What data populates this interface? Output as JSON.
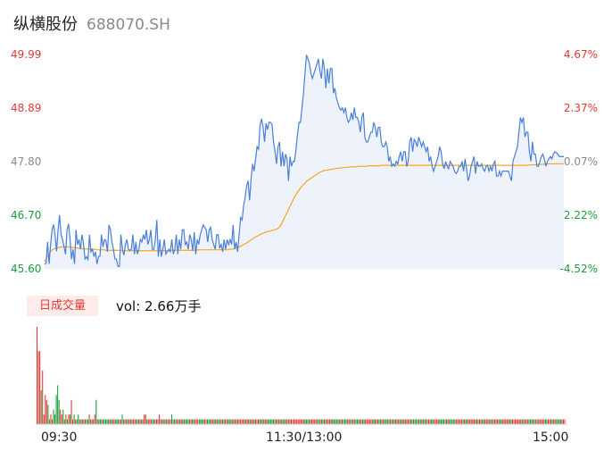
{
  "header": {
    "name": "纵横股份",
    "code": "688070.SH"
  },
  "volume": {
    "tag": "日成交量",
    "text": "vol: 2.66万手"
  },
  "chart_data": [
    {
      "type": "line",
      "y_left_ticks": [
        "49.99",
        "48.89",
        "47.80",
        "46.70",
        "45.60"
      ],
      "y_right_ticks": [
        "4.67%",
        "2.37%",
        "0.07%",
        "-2.22%",
        "-4.52%"
      ],
      "y_left_colors": [
        "#e53935",
        "#e53935",
        "#8a8a8a",
        "#1a9e3a",
        "#1a9e3a"
      ],
      "ylim": [
        45.6,
        49.99
      ],
      "x_ticks": [
        "09:30",
        "11:30/13:00",
        "15:00"
      ],
      "series": [
        {
          "values": [
            45.69,
            45.72,
            46.15,
            45.7,
            46.1,
            46.4,
            46.51,
            46.28,
            45.96,
            46.4,
            46.7,
            46.3,
            46.2,
            46.05,
            45.9,
            46.4,
            46.52,
            46.22,
            45.8,
            46.0,
            45.7,
            46.4,
            46.1,
            46.2,
            46.0,
            46.3,
            46.12,
            45.8,
            45.85,
            45.79,
            46.3,
            45.95,
            46.0,
            45.85,
            45.95,
            45.7,
            45.85,
            45.86,
            46.3,
            46.05,
            46.2,
            46.18,
            45.95,
            46.5,
            46.4,
            46.15,
            46.0,
            45.8,
            45.8,
            45.65,
            45.65,
            46.3,
            46.0,
            45.88,
            46.1,
            46.2,
            46.0,
            45.98,
            46.0,
            46.3,
            45.9,
            46.15,
            45.9,
            46.0,
            46.2,
            46.15,
            46.3,
            46.2,
            46.4,
            46.1,
            46.2,
            46.4,
            46.0,
            46.0,
            46.2,
            46.6,
            45.85,
            46.2,
            45.85,
            46.0,
            46.2,
            45.9,
            45.95,
            46.0,
            45.95,
            46.2,
            45.9,
            46.0,
            46.3,
            45.9,
            46.2,
            46.0,
            46.4,
            46.4,
            46.1,
            46.15,
            46.0,
            46.3,
            46.2,
            45.97,
            46.35,
            45.9,
            46.2,
            46.1,
            46.3,
            46.4,
            46.5,
            46.45,
            46.4,
            46.15,
            46.4,
            46.45,
            46.2,
            46.1,
            46.0,
            46.3,
            46.3,
            46.02,
            46.1,
            45.95,
            46.2,
            46.0,
            46.2,
            46.1,
            46.2,
            46.1,
            46.5,
            46.0,
            46.15,
            45.95,
            46.3,
            46.65,
            46.6,
            46.9,
            47.06,
            47.3,
            47.4,
            47.0,
            47.45,
            47.75,
            47.6,
            47.85,
            48.1,
            48.05,
            48.55,
            48.67,
            48.5,
            48.2,
            48.58,
            48.45,
            48.6,
            48.6,
            48.55,
            48.2,
            48.0,
            47.75,
            48.1,
            48.2,
            47.7,
            48.0,
            47.7,
            47.95,
            47.85,
            47.4,
            47.9,
            47.7,
            47.8,
            47.8,
            48.05,
            48.35,
            48.6,
            48.6,
            48.9,
            49.2,
            49.6,
            49.98,
            49.9,
            49.8,
            49.6,
            49.5,
            49.6,
            49.7,
            49.8,
            49.9,
            49.65,
            49.5,
            49.9,
            49.7,
            49.3,
            49.7,
            49.4,
            49.7,
            49.7,
            49.2,
            49.3,
            49.1,
            49.0,
            48.9,
            48.85,
            48.9,
            48.8,
            48.9,
            48.7,
            48.6,
            48.65,
            48.8,
            48.65,
            48.9,
            48.7,
            48.7,
            48.6,
            48.4,
            48.7,
            48.8,
            48.3,
            48.2,
            48.2,
            48.3,
            48.4,
            48.4,
            48.6,
            48.5,
            48.3,
            48.5,
            48.5,
            48.2,
            48.1,
            48.1,
            48.2,
            48.1,
            47.8,
            47.9,
            47.7,
            47.75,
            47.7,
            47.8,
            47.75,
            47.9,
            48.0,
            47.8,
            48.0,
            48.0,
            47.7,
            47.8,
            48.2,
            48.3,
            48.0,
            48.25,
            48.2,
            48.1,
            48.3,
            48.2,
            48.1,
            48.2,
            48.1,
            48.0,
            48.1,
            47.8,
            47.9,
            47.7,
            47.6,
            47.7,
            47.8,
            47.9,
            48.1,
            48.0,
            47.75,
            47.65,
            47.8,
            47.7,
            47.65,
            47.8,
            47.75,
            47.7,
            47.6,
            47.55,
            47.6,
            47.7,
            47.7,
            47.8,
            47.6,
            47.85,
            47.65,
            47.4,
            47.5,
            47.7,
            47.8,
            47.9,
            47.55,
            47.8,
            47.7,
            47.7,
            47.75,
            47.65,
            47.6,
            47.7,
            47.72,
            47.6,
            47.7,
            47.6,
            47.75,
            47.8,
            47.5,
            47.5,
            47.6,
            47.5,
            47.6,
            47.6,
            47.6,
            47.6,
            47.6,
            47.5,
            47.4,
            47.8,
            47.9,
            48.0,
            48.1,
            48.4,
            48.7,
            48.6,
            48.7,
            48.3,
            48.4,
            48.4,
            48.0,
            47.8,
            48.2,
            47.95,
            47.95,
            47.7,
            47.7,
            47.8,
            47.9,
            47.95,
            47.85,
            47.7,
            47.8,
            47.85,
            47.9,
            47.85,
            47.95,
            48.0,
            47.98,
            47.95,
            47.9,
            47.9,
            47.9,
            47.9
          ],
          "color": "#4a7fd8"
        },
        {
          "values": [
            45.75,
            45.8,
            45.86,
            45.9,
            45.95,
            45.98,
            46.0,
            46.01,
            46.02,
            46.03,
            46.04,
            46.04,
            46.05,
            46.05,
            46.05,
            46.05,
            46.05,
            46.05,
            46.04,
            46.04,
            46.04,
            46.03,
            46.03,
            46.03,
            46.02,
            46.02,
            46.02,
            46.01,
            46.01,
            46.01,
            46.01,
            46.0,
            46.0,
            46.0,
            46.0,
            46.0,
            46.0,
            45.99,
            45.99,
            45.99,
            45.99,
            45.99,
            45.99,
            45.98,
            45.98,
            45.98,
            45.98,
            45.98,
            45.98,
            45.98,
            45.98,
            45.98,
            45.98,
            45.98,
            45.97,
            45.97,
            45.97,
            45.97,
            45.97,
            45.97,
            45.97,
            45.97,
            45.97,
            45.97,
            45.97,
            45.97,
            45.97,
            45.97,
            45.97,
            45.97,
            45.97,
            45.97,
            45.97,
            45.97,
            45.97,
            45.97,
            45.97,
            45.97,
            45.97,
            45.97,
            45.97,
            45.97,
            45.97,
            45.97,
            45.97,
            45.97,
            45.97,
            45.97,
            45.97,
            45.98,
            45.98,
            45.98,
            45.98,
            45.98,
            45.98,
            45.98,
            45.98,
            45.98,
            45.98,
            45.98,
            45.98,
            45.98,
            45.98,
            45.98,
            45.98,
            45.98,
            45.98,
            45.98,
            45.99,
            45.99,
            45.99,
            45.99,
            45.99,
            45.99,
            45.99,
            45.99,
            45.99,
            45.99,
            45.99,
            45.99,
            45.99,
            45.99,
            45.99,
            45.99,
            45.99,
            45.99,
            45.99,
            45.99,
            45.99,
            45.99,
            46.0,
            46.0,
            46.0,
            46.01,
            46.02,
            46.03,
            46.04,
            46.05,
            46.06,
            46.08,
            46.09,
            46.11,
            46.12,
            46.14,
            46.16,
            46.18,
            46.2,
            46.22,
            46.24,
            46.26,
            46.27,
            46.29,
            46.3,
            46.32,
            46.33,
            46.34,
            46.35,
            46.36,
            46.37,
            46.37,
            46.38,
            46.39,
            46.4,
            46.41,
            46.42,
            46.44,
            46.47,
            46.52,
            46.58,
            46.64,
            46.7,
            46.76,
            46.82,
            46.88,
            46.94,
            47.0,
            47.06,
            47.11,
            47.16,
            47.2,
            47.24,
            47.28,
            47.31,
            47.34,
            47.37,
            47.4,
            47.42,
            47.44,
            47.46,
            47.48,
            47.5,
            47.52,
            47.54,
            47.56,
            47.58,
            47.59,
            47.6,
            47.61,
            47.62,
            47.62,
            47.63,
            47.63,
            47.64,
            47.64,
            47.65,
            47.65,
            47.66,
            47.66,
            47.66,
            47.67,
            47.67,
            47.67,
            47.68,
            47.68,
            47.68,
            47.68,
            47.69,
            47.69,
            47.69,
            47.69,
            47.69,
            47.7,
            47.7,
            47.7,
            47.7,
            47.7,
            47.7,
            47.7,
            47.71,
            47.71,
            47.71,
            47.71,
            47.71,
            47.71,
            47.71,
            47.71,
            47.71,
            47.72,
            47.72,
            47.72,
            47.72,
            47.72,
            47.72,
            47.72,
            47.72,
            47.72,
            47.72,
            47.72,
            47.72,
            47.72,
            47.72,
            47.72,
            47.72,
            47.72,
            47.72,
            47.72,
            47.72,
            47.72,
            47.72,
            47.72,
            47.72,
            47.72,
            47.72,
            47.72,
            47.72,
            47.72,
            47.72,
            47.72,
            47.72,
            47.72,
            47.72,
            47.72,
            47.72,
            47.72,
            47.72,
            47.72,
            47.72,
            47.72,
            47.72,
            47.72,
            47.72,
            47.72,
            47.72,
            47.72,
            47.72,
            47.72,
            47.72,
            47.72,
            47.72,
            47.72,
            47.72,
            47.72,
            47.72,
            47.72,
            47.72,
            47.72,
            47.72,
            47.72,
            47.72,
            47.72,
            47.72,
            47.72,
            47.72,
            47.72,
            47.72,
            47.72,
            47.72,
            47.72,
            47.72,
            47.72,
            47.72,
            47.72,
            47.72,
            47.72,
            47.72,
            47.72,
            47.72,
            47.72,
            47.72,
            47.72,
            47.72,
            47.72,
            47.72,
            47.72,
            47.72,
            47.72,
            47.72,
            47.72,
            47.72,
            47.72,
            47.72,
            47.72,
            47.72,
            47.72,
            47.72,
            47.72,
            47.72,
            47.72,
            47.72,
            47.72,
            47.72,
            47.72,
            47.73,
            47.73,
            47.73,
            47.73,
            47.73,
            47.74,
            47.74,
            47.74,
            47.74,
            47.74,
            47.74,
            47.75,
            47.75,
            47.75,
            47.75,
            47.75,
            47.75,
            47.75,
            47.75,
            47.75,
            47.75,
            47.75,
            47.75,
            47.75,
            47.75
          ],
          "color": "#f5a623"
        }
      ]
    },
    {
      "type": "bar",
      "values": [
        100,
        75,
        75,
        35,
        55,
        10,
        30,
        25,
        20,
        5,
        10,
        5,
        15,
        10,
        30,
        40,
        25,
        15,
        10,
        15,
        5,
        10,
        5,
        10,
        10,
        25,
        5,
        10,
        5,
        5,
        10,
        5,
        5,
        5,
        5,
        5,
        5,
        5,
        10,
        5,
        5,
        5,
        10,
        25,
        5,
        5,
        5,
        5,
        5,
        5,
        5,
        5,
        5,
        5,
        5,
        5,
        5,
        5,
        5,
        5,
        5,
        5,
        10,
        5,
        5,
        5,
        5,
        5,
        5,
        5,
        5,
        5,
        5,
        5,
        5,
        5,
        5,
        5,
        10,
        10,
        5,
        5,
        5,
        5,
        5,
        5,
        5,
        5,
        5,
        10,
        5,
        5,
        5,
        5,
        5,
        5,
        5,
        5,
        10,
        5,
        5,
        5,
        5,
        5,
        5,
        5,
        5,
        5,
        5,
        5,
        5,
        5,
        5,
        5,
        5,
        5,
        5,
        5,
        5,
        5,
        5,
        5,
        5,
        5,
        5,
        5,
        5,
        5,
        5,
        5,
        5,
        5,
        5,
        5,
        5,
        5,
        5,
        5,
        5,
        5,
        5,
        5,
        5,
        5,
        5,
        5,
        5,
        5,
        5,
        5,
        5,
        5,
        5,
        5,
        5,
        5,
        5,
        5,
        5,
        5,
        5,
        5,
        5,
        5,
        5,
        5,
        5,
        5,
        5,
        5,
        5,
        5,
        5,
        5,
        5,
        5,
        5,
        5,
        5,
        5,
        5,
        5,
        5,
        5,
        5,
        5,
        5,
        5,
        5,
        5,
        5,
        5,
        5,
        5,
        5,
        5,
        5,
        5,
        5,
        5,
        5,
        5,
        5,
        5,
        5,
        5,
        5,
        5,
        5,
        5,
        5,
        5,
        5,
        5,
        5,
        5,
        5,
        5,
        5,
        5,
        5,
        5,
        5,
        5,
        5,
        5,
        5,
        5,
        5,
        5,
        5,
        5,
        5,
        5,
        5,
        5,
        5,
        5,
        5,
        5,
        5,
        5,
        5,
        5,
        5,
        5,
        5,
        5,
        5,
        5,
        5,
        5,
        5,
        5,
        5,
        5,
        5,
        5,
        5,
        5,
        5,
        5,
        5,
        5,
        5,
        5,
        5,
        5,
        5,
        5,
        5,
        5,
        5,
        5,
        5,
        5,
        5,
        5,
        5,
        5,
        5,
        5,
        5,
        5,
        5,
        5,
        5,
        5,
        5,
        5,
        5,
        5,
        5,
        5,
        5,
        5,
        5,
        5,
        5,
        5,
        5,
        5,
        5,
        5,
        5,
        5,
        5,
        5,
        5,
        5,
        5,
        5,
        5,
        5,
        5,
        5,
        5,
        5,
        5,
        5,
        5,
        5,
        5,
        5,
        5,
        5,
        5,
        5,
        5,
        5,
        5,
        5,
        5,
        5,
        5,
        5,
        5,
        5,
        5,
        5,
        5,
        5,
        5,
        5,
        5,
        5,
        5,
        5,
        5,
        5,
        5,
        5,
        5,
        5,
        5,
        5,
        5,
        5,
        5,
        5,
        5,
        5,
        5,
        5,
        5,
        5,
        5,
        5,
        5,
        5,
        5,
        5,
        5,
        5,
        5,
        5,
        5,
        5,
        5,
        5,
        5,
        5,
        5,
        5,
        5
      ],
      "colors_up": "#e53935",
      "colors_down": "#1a9e3a"
    }
  ]
}
